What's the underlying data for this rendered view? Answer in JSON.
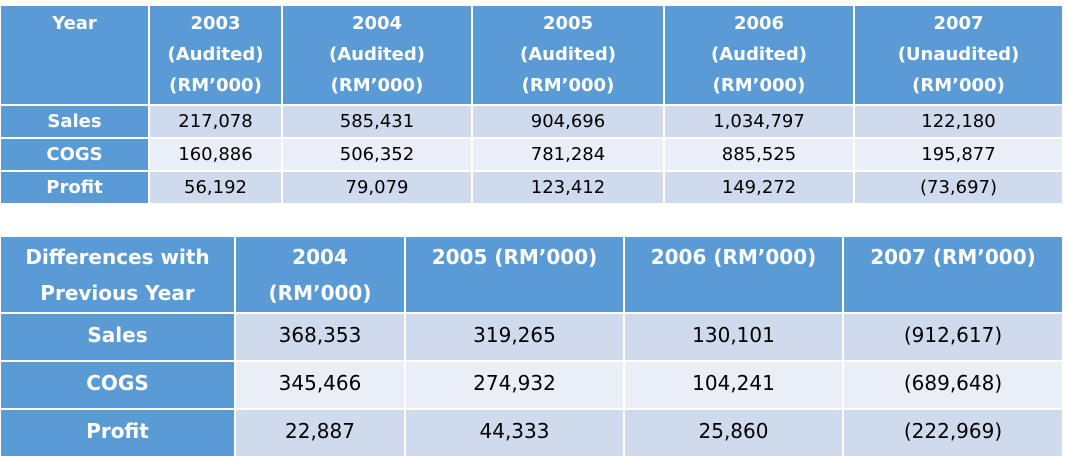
{
  "table1": {
    "headers": [
      [
        "Year"
      ],
      [
        "2003",
        "(Audited)",
        "(RM’000)"
      ],
      [
        "2004",
        "(Audited)",
        "(RM’000)"
      ],
      [
        "2005",
        "(Audited)",
        "(RM’000)"
      ],
      [
        "2006",
        "(Audited)",
        "(RM’000)"
      ],
      [
        "2007",
        "(Unaudited)",
        "(RM’000)"
      ]
    ],
    "rows": [
      {
        "label": "Sales",
        "cells": [
          "217,078",
          "585,431",
          "904,696",
          "1,034,797",
          "122,180"
        ]
      },
      {
        "label": "COGS",
        "cells": [
          "160,886",
          "506,352",
          "781,284",
          "885,525",
          "195,877"
        ]
      },
      {
        "label": "Profit",
        "cells": [
          "56,192",
          "79,079",
          "123,412",
          "149,272",
          "(73,697)"
        ]
      }
    ]
  },
  "table2": {
    "headers": [
      [
        "Differences with",
        "Previous Year"
      ],
      [
        "2004",
        "(RM’000)"
      ],
      [
        "2005 (RM’000)"
      ],
      [
        "2006 (RM’000)"
      ],
      [
        "2007 (RM’000)"
      ]
    ],
    "rows": [
      {
        "label": "Sales",
        "cells": [
          "368,353",
          "319,265",
          "130,101",
          "(912,617)"
        ]
      },
      {
        "label": "COGS",
        "cells": [
          "345,466",
          "274,932",
          "104,241",
          "(689,648)"
        ]
      },
      {
        "label": "Profit",
        "cells": [
          "22,887",
          "44,333",
          "25,860",
          "(222,969)"
        ]
      }
    ]
  }
}
